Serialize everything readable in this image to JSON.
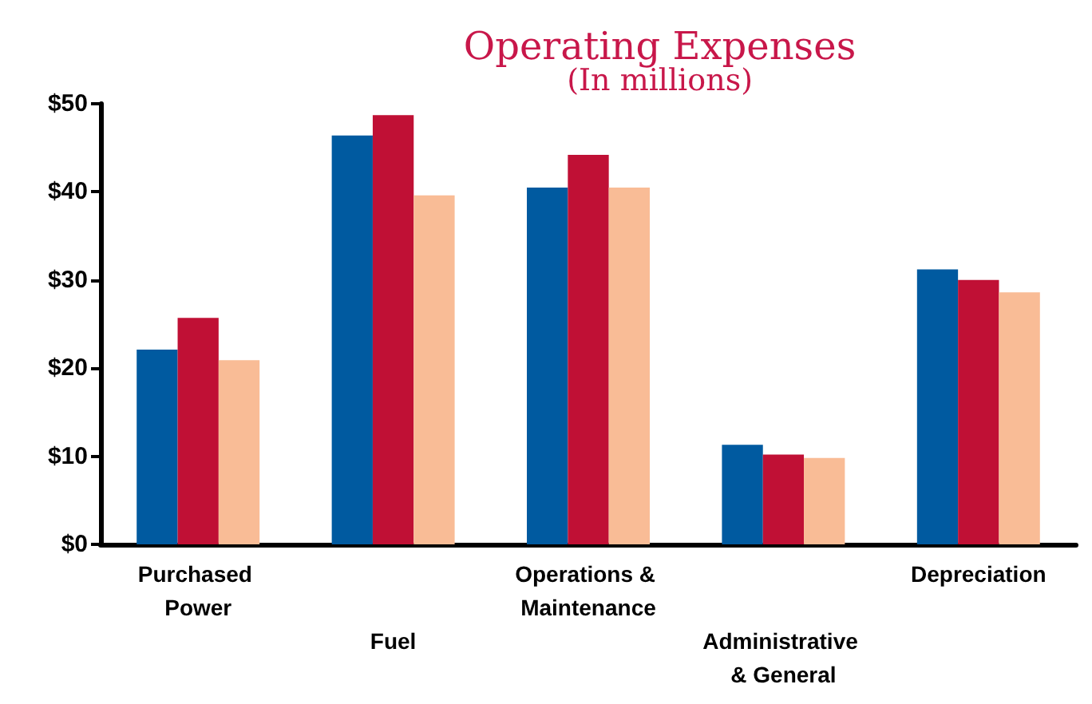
{
  "chart_data": {
    "type": "bar",
    "title": "Operating Expenses",
    "subtitle": "(In millions)",
    "categories": [
      "Purchased Power",
      "Fuel",
      "Operations & Maintenance",
      "Administrative & General",
      "Depreciation"
    ],
    "series": [
      {
        "color": "#005aa0",
        "values": [
          22.1,
          46.4,
          40.5,
          11.3,
          31.2
        ]
      },
      {
        "color": "#c01035",
        "values": [
          25.7,
          48.7,
          44.2,
          10.2,
          30.0
        ]
      },
      {
        "color": "#f9bc96",
        "values": [
          20.9,
          39.6,
          40.5,
          9.8,
          28.6
        ]
      }
    ],
    "ylim": [
      0,
      50
    ],
    "yticks": [
      {
        "value": 0,
        "label": "$0"
      },
      {
        "value": 10,
        "label": "$10"
      },
      {
        "value": 20,
        "label": "$20"
      },
      {
        "value": 30,
        "label": "$30"
      },
      {
        "value": 40,
        "label": "$40"
      },
      {
        "value": 50,
        "label": "$50"
      }
    ],
    "grid": false
  }
}
